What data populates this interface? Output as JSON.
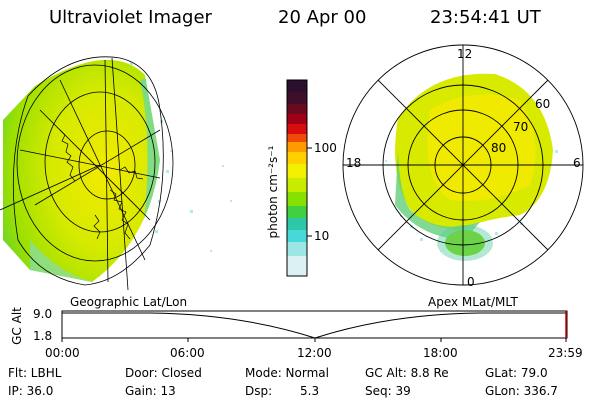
{
  "header": {
    "title": "Ultraviolet Imager",
    "date": "20 Apr 00",
    "time": "23:54:41 UT"
  },
  "left_panel": {
    "caption": "Geographic Lat/Lon"
  },
  "right_panel": {
    "caption": "Apex MLat/MLT",
    "mlt_labels": [
      "12",
      "18",
      "6",
      "0"
    ],
    "lat_labels": [
      "60",
      "70",
      "80"
    ]
  },
  "colorbar": {
    "label": "photon cm⁻²s⁻¹",
    "ticks": [
      "100",
      "10"
    ],
    "colors": [
      "#2b0f2e",
      "#3d0f28",
      "#6b0a1e",
      "#a00015",
      "#d80c0c",
      "#f04a08",
      "#ff9a00",
      "#ffd000",
      "#f2f000",
      "#c8ec00",
      "#86e000",
      "#40d040",
      "#2ec8a8",
      "#48d8d8",
      "#9ce6e6",
      "#dcf2f2"
    ]
  },
  "altitude_plot": {
    "ylabel": "GC Alt",
    "yticks": [
      "9.0",
      "1.8"
    ],
    "xticks": [
      "00:00",
      "06:00",
      "12:00",
      "18:00",
      "23:59"
    ]
  },
  "info": {
    "row1": {
      "flt": "Flt: LBHL",
      "door": "Door: Closed",
      "mode": "Mode: Normal",
      "gcalt": "GC Alt: 8.8 Re",
      "glat": "GLat: 79.0"
    },
    "row2": {
      "ip": "IP: 36.0",
      "gain": "Gain: 13",
      "dsp_label": "Dsp:",
      "dsp_value": "5.3",
      "seq": "Seq: 39",
      "glon": "GLon: 336.7"
    }
  }
}
